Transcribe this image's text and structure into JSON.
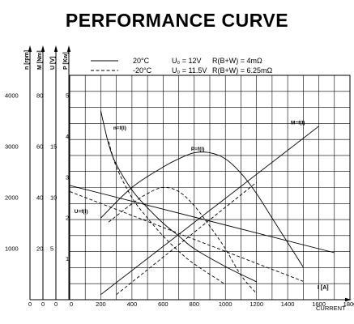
{
  "chart_data": {
    "type": "line",
    "title": "PERFORMANCE CURVE",
    "x_axis": {
      "label": "I [A]",
      "caption": "CURRENT",
      "range": [
        0,
        1800
      ],
      "ticks": [
        0,
        200,
        400,
        600,
        800,
        1000,
        1200,
        1400,
        1600,
        1800
      ]
    },
    "y_axes": [
      {
        "id": "n",
        "label": "n [rpm]",
        "range": [
          0,
          4000
        ],
        "ticks": [
          1000,
          2000,
          3000,
          4000
        ]
      },
      {
        "id": "M",
        "label": "M [Nm]",
        "range": [
          0,
          80
        ],
        "ticks": [
          20,
          40,
          60,
          80
        ]
      },
      {
        "id": "U",
        "label": "U [V]",
        "range": [
          0,
          20
        ],
        "ticks": [
          5,
          10,
          15
        ]
      },
      {
        "id": "P",
        "label": "P [Kw]",
        "range": [
          0,
          5
        ],
        "ticks": [
          1,
          2,
          3,
          4,
          5
        ]
      }
    ],
    "legend": {
      "placement": "top",
      "entries": [
        {
          "style": "solid",
          "temp": "20°C",
          "voltage": "U₀ = 12V",
          "resistance": "R(B+W) = 4mΩ"
        },
        {
          "style": "dashed",
          "temp": "-20°C",
          "voltage": "U₀ = 11.5V",
          "resistance": "R(B+W) = 6.25mΩ"
        }
      ]
    },
    "grid": true,
    "series": [
      {
        "name": "n=f(I)",
        "axis": "n",
        "condition": "20°C",
        "x": [
          200,
          250,
          300,
          400,
          500,
          600,
          700,
          800,
          1000,
          1200
        ],
        "y": [
          3700,
          3050,
          2650,
          2150,
          1800,
          1500,
          1250,
          1000,
          650,
          350
        ]
      },
      {
        "name": "n=f(I)",
        "axis": "n",
        "condition": "-20°C",
        "x": [
          250,
          300,
          400,
          500,
          600,
          700,
          800,
          1000
        ],
        "y": [
          3100,
          2600,
          2000,
          1600,
          1250,
          950,
          700,
          300
        ]
      },
      {
        "name": "M=f(I)",
        "axis": "M",
        "condition": "20°C",
        "x": [
          200,
          1600
        ],
        "y": [
          2,
          68
        ]
      },
      {
        "name": "M=f(I)",
        "axis": "M",
        "condition": "-20°C",
        "x": [
          300,
          1200
        ],
        "y": [
          2,
          46
        ]
      },
      {
        "name": "U=f(I)",
        "axis": "U",
        "condition": "20°C",
        "x": [
          0,
          1700
        ],
        "y": [
          11.2,
          4.6
        ]
      },
      {
        "name": "U=f(I)",
        "axis": "U",
        "condition": "-20°C",
        "x": [
          0,
          1500
        ],
        "y": [
          10.6,
          1.8
        ]
      },
      {
        "name": "P=f(I)",
        "axis": "P",
        "condition": "20°C",
        "x": [
          200,
          400,
          600,
          700,
          800,
          900,
          1000,
          1100,
          1200,
          1300,
          1400,
          1500
        ],
        "y": [
          2.0,
          2.75,
          3.25,
          3.45,
          3.6,
          3.6,
          3.45,
          3.1,
          2.6,
          2.0,
          1.4,
          0.8
        ]
      },
      {
        "name": "P=f(I)",
        "axis": "P",
        "condition": "-20°C",
        "x": [
          250,
          400,
          500,
          600,
          700,
          800,
          900,
          1000,
          1100,
          1200
        ],
        "y": [
          1.9,
          2.35,
          2.6,
          2.75,
          2.65,
          2.3,
          1.8,
          1.25,
          0.6,
          0.15
        ]
      }
    ],
    "annotations": [
      {
        "text": "n=f(I)",
        "x": 280,
        "y_axis": "n",
        "y": 3330
      },
      {
        "text": "P=f(I)",
        "x": 780,
        "y_axis": "n",
        "y": 2920
      },
      {
        "text": "M=f(I)",
        "x": 1420,
        "y_axis": "n",
        "y": 3440
      },
      {
        "text": "U=f(I)",
        "x": 30,
        "y_axis": "n",
        "y": 1700
      }
    ]
  }
}
